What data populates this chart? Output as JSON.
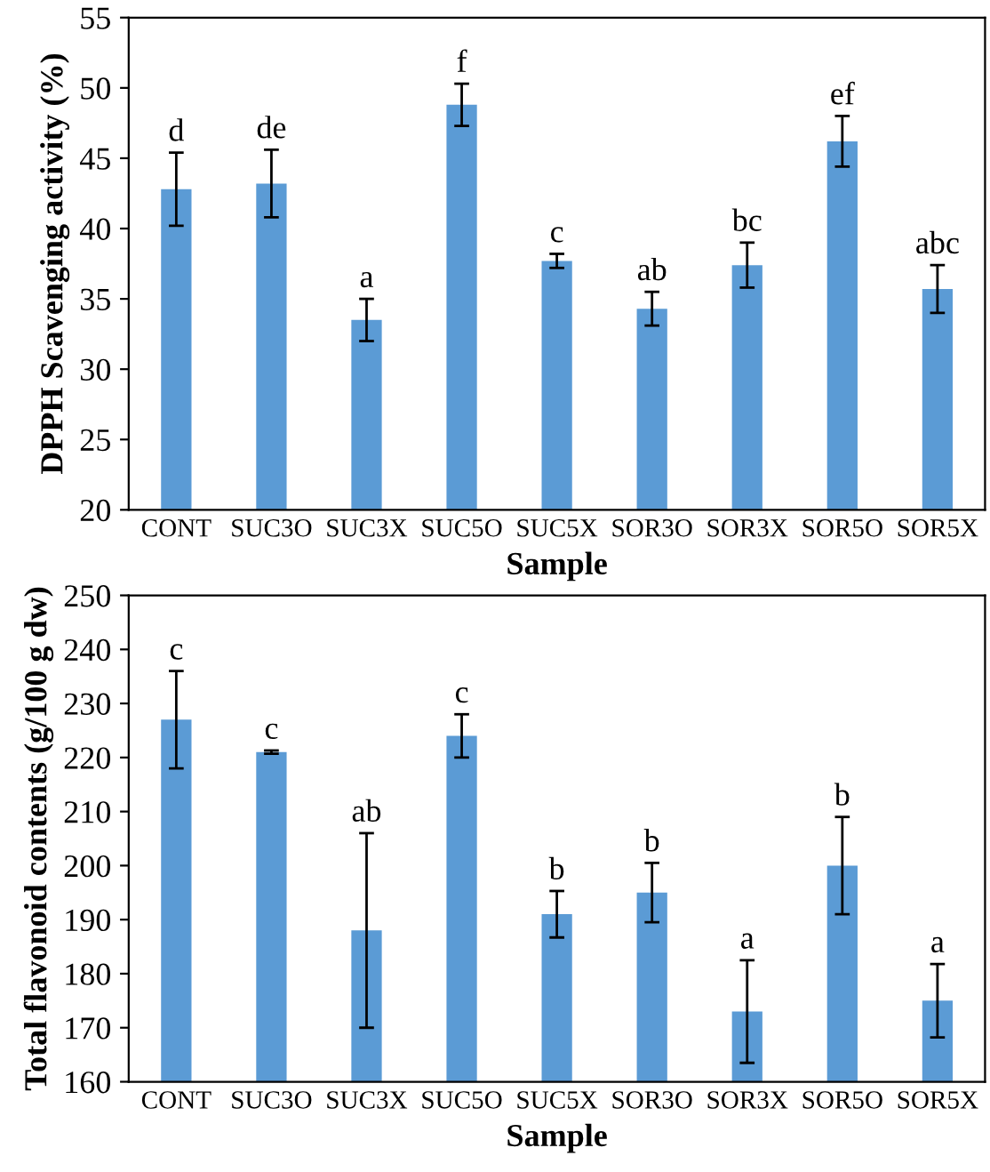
{
  "chart_data": [
    {
      "type": "bar",
      "xlabel": "Sample",
      "ylabel": "DPPH Scavenging activity (%)",
      "categories": [
        "CONT",
        "SUC3O",
        "SUC3X",
        "SUC5O",
        "SUC5X",
        "SOR3O",
        "SOR3X",
        "SOR5O",
        "SOR5X"
      ],
      "values": [
        42.8,
        43.2,
        33.5,
        48.8,
        37.7,
        34.3,
        37.4,
        46.2,
        35.7
      ],
      "errors": [
        2.6,
        2.4,
        1.5,
        1.5,
        0.5,
        1.2,
        1.6,
        1.8,
        1.7
      ],
      "color": "#5b9bd5",
      "ylim": [
        20,
        55
      ],
      "yticks": [
        20,
        25,
        30,
        35,
        40,
        45,
        50,
        55
      ],
      "annotations": [
        {
          "text": "d",
          "x": "CONT",
          "y": 45.4
        },
        {
          "text": "de",
          "x": "SUC3O",
          "y": 45.6
        },
        {
          "text": "a",
          "x": "SUC3X",
          "y": 35.0
        },
        {
          "text": "f",
          "x": "SUC5O",
          "y": 50.3
        },
        {
          "text": "c",
          "x": "SUC5X",
          "y": 38.2
        },
        {
          "text": "ab",
          "x": "SOR3O",
          "y": 35.5
        },
        {
          "text": "bc",
          "x": "SOR3X",
          "y": 39.0
        },
        {
          "text": "ef",
          "x": "SOR5O",
          "y": 48.0
        },
        {
          "text": "abc",
          "x": "SOR5X",
          "y": 37.4
        }
      ]
    },
    {
      "type": "bar",
      "xlabel": "Sample",
      "ylabel": "Total flavonoid contents (g/100 g dw)",
      "categories": [
        "CONT",
        "SUC3O",
        "SUC3X",
        "SUC5O",
        "SUC5X",
        "SOR3O",
        "SOR3X",
        "SOR5O",
        "SOR5X"
      ],
      "values": [
        227,
        221,
        188,
        224,
        191,
        195,
        173,
        200,
        175
      ],
      "errors": [
        9,
        0.3,
        18,
        4,
        4.3,
        5.5,
        9.5,
        9,
        6.8
      ],
      "color": "#5b9bd5",
      "ylim": [
        160,
        250
      ],
      "yticks": [
        160,
        170,
        180,
        190,
        200,
        210,
        220,
        230,
        240,
        250
      ],
      "annotations": [
        {
          "text": "c",
          "x": "CONT",
          "y": 236
        },
        {
          "text": "c",
          "x": "SUC3O",
          "y": 221.3
        },
        {
          "text": "ab",
          "x": "SUC3X",
          "y": 206
        },
        {
          "text": "c",
          "x": "SUC5O",
          "y": 228
        },
        {
          "text": "b",
          "x": "SUC5X",
          "y": 195.3
        },
        {
          "text": "b",
          "x": "SOR3O",
          "y": 200.5
        },
        {
          "text": "a",
          "x": "SOR3X",
          "y": 182.5
        },
        {
          "text": "b",
          "x": "SOR5O",
          "y": 209
        },
        {
          "text": "a",
          "x": "SOR5X",
          "y": 181.8
        }
      ]
    }
  ]
}
